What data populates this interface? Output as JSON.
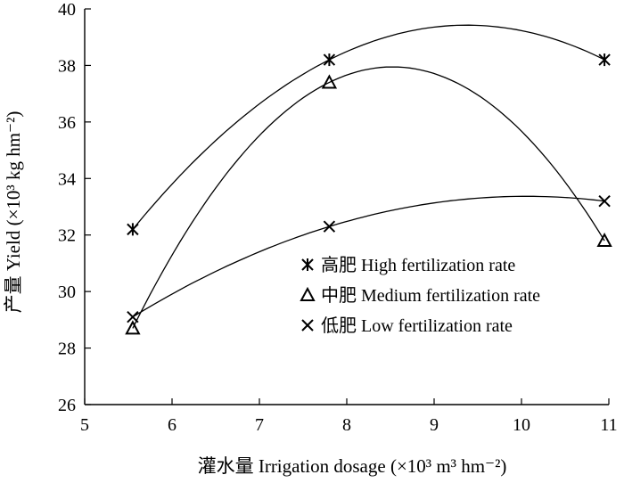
{
  "chart_data": {
    "type": "scatter",
    "title": "",
    "xlabel": "灌水量 Irrigation dosage (×10³ m³ hm⁻²)",
    "ylabel": "产量 Yield (×10³ kg hm⁻²)",
    "xlim": [
      5,
      11
    ],
    "ylim": [
      26,
      40
    ],
    "x_ticks": [
      "5",
      "6",
      "7",
      "8",
      "9",
      "10",
      "11"
    ],
    "y_ticks": [
      "26",
      "28",
      "30",
      "32",
      "34",
      "36",
      "38",
      "40"
    ],
    "grid": false,
    "legend_position": "right",
    "fit": "quadratic",
    "series": [
      {
        "name": "高肥 High fertilization rate",
        "marker": "asterisk",
        "x": [
          5.55,
          7.8,
          10.95
        ],
        "y": [
          32.2,
          38.2,
          38.2
        ]
      },
      {
        "name": "中肥 Medium fertilization rate",
        "marker": "triangle",
        "x": [
          5.55,
          7.8,
          10.95
        ],
        "y": [
          28.7,
          37.4,
          31.8
        ]
      },
      {
        "name": "低肥 Low fertilization rate",
        "marker": "cross",
        "x": [
          5.55,
          7.8,
          10.95
        ],
        "y": [
          29.1,
          32.3,
          33.2
        ]
      }
    ]
  }
}
